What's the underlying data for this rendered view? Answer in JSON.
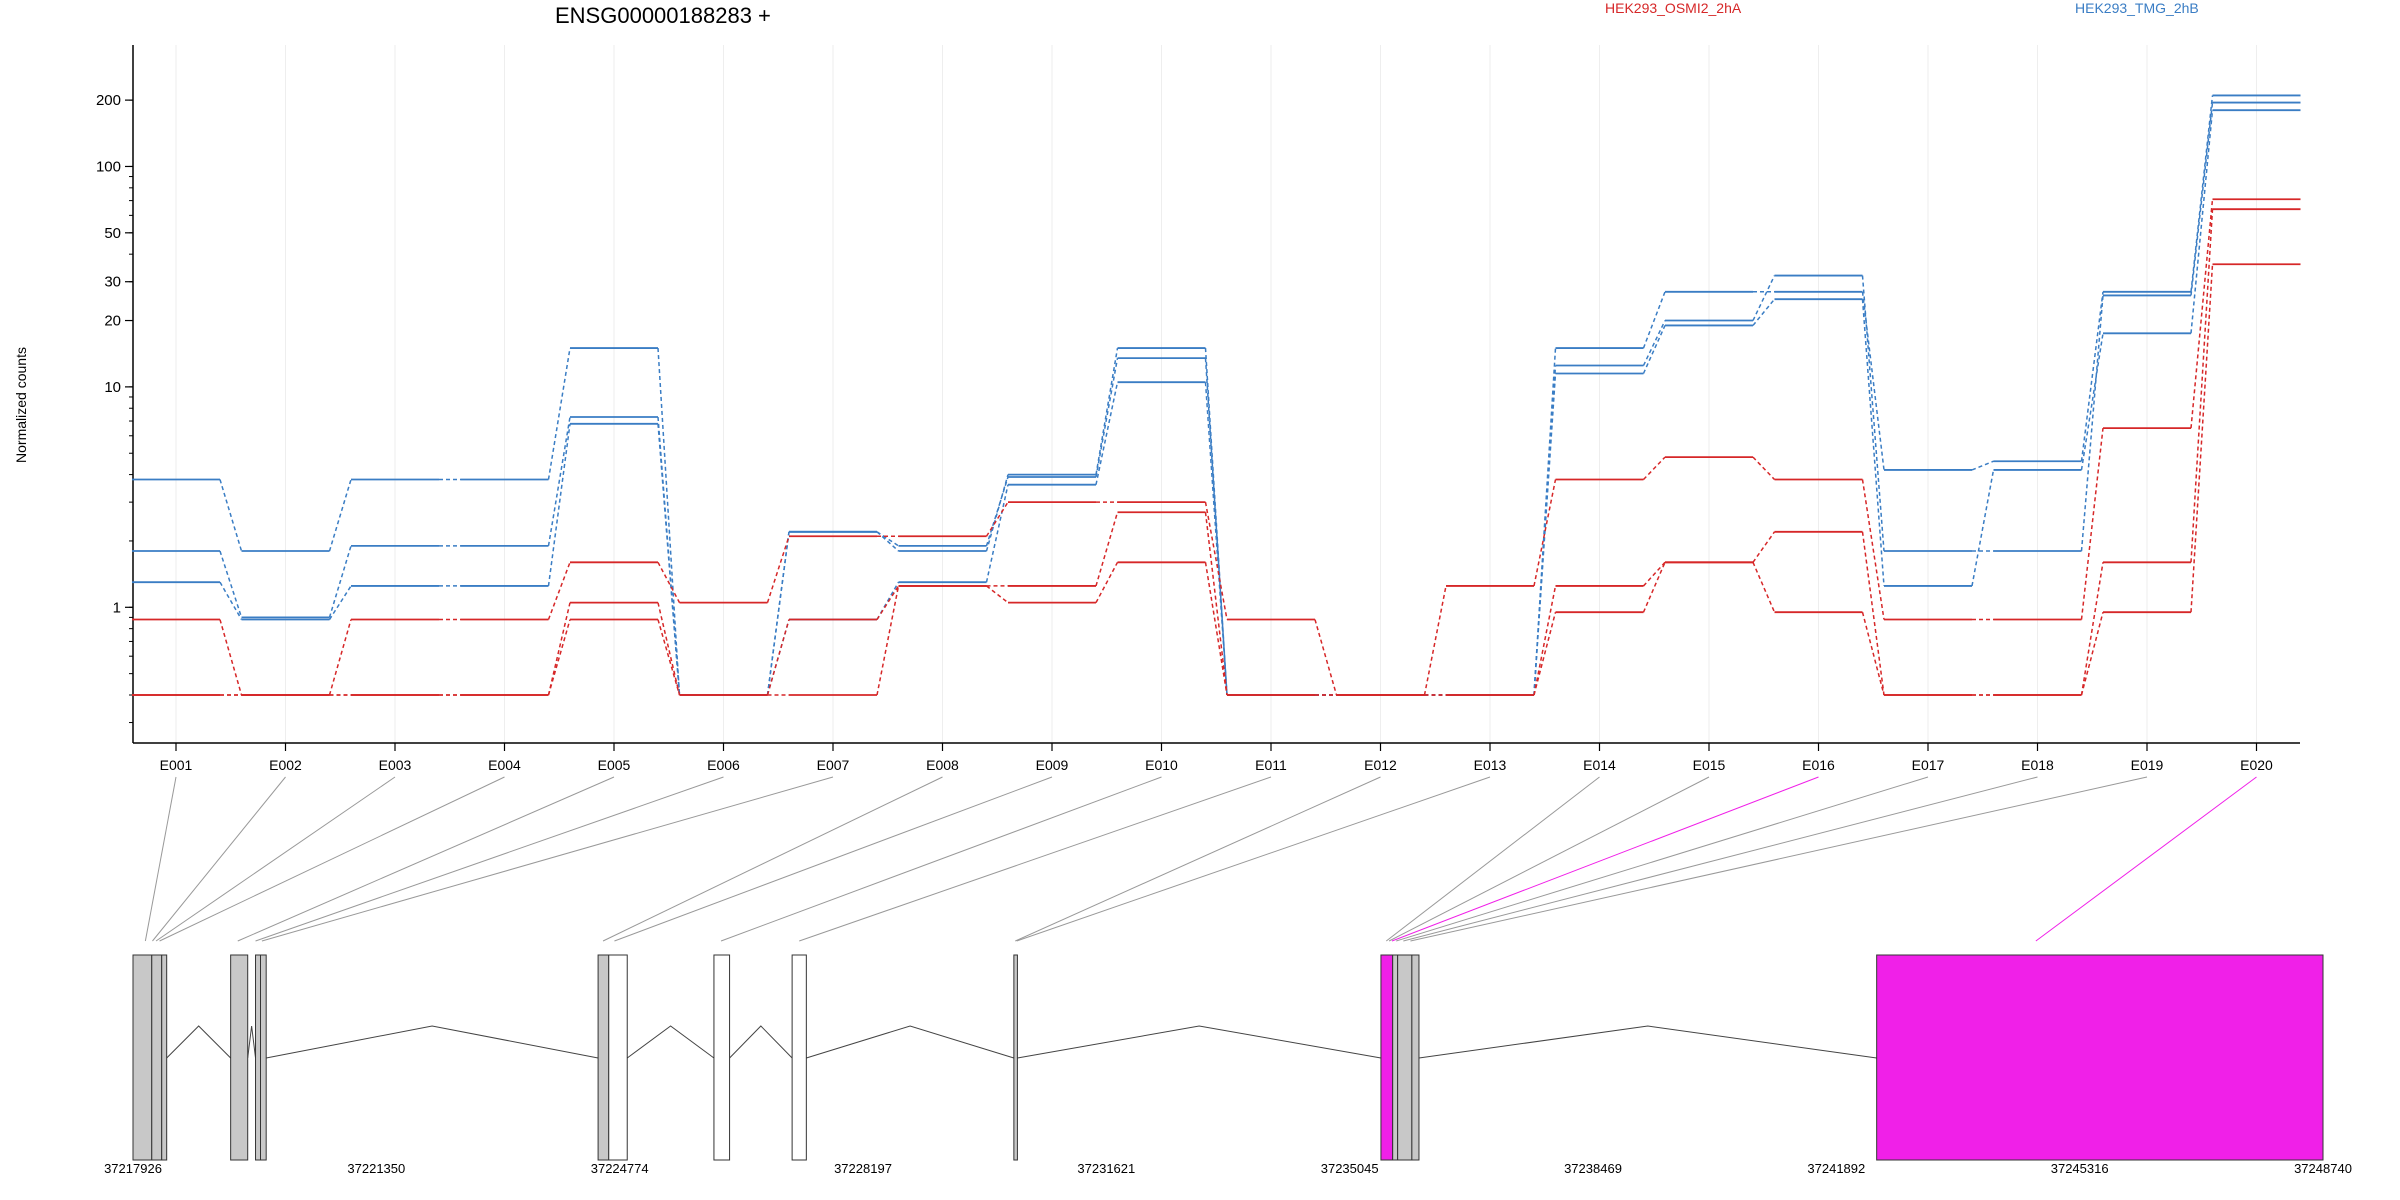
{
  "chart_data": {
    "type": "line",
    "title": "ENSG00000188283 +",
    "ylabel": "Normalized counts",
    "xlabel": "",
    "y_scale": "log",
    "ylim": [
      0.25,
      260
    ],
    "y_ticks": [
      1,
      10,
      20,
      30,
      50,
      100,
      200
    ],
    "grid": "vertical lines at exon boundaries",
    "legend_placement": "top",
    "exons": [
      "E001",
      "E002",
      "E003",
      "E004",
      "E005",
      "E006",
      "E007",
      "E008",
      "E009",
      "E010",
      "E011",
      "E012",
      "E013",
      "E014",
      "E015",
      "E016",
      "E017",
      "E018",
      "E019",
      "E020"
    ],
    "legend": [
      {
        "label": "HEK293_OSMI2_2hA",
        "color": "#d62728"
      },
      {
        "label": "HEK293_TMG_2hB",
        "color": "#3a7dc4"
      }
    ],
    "series": [
      {
        "group": "HEK293_TMG_2hB",
        "color": "#3a7dc4",
        "values": [
          3.8,
          1.8,
          3.8,
          3.8,
          15,
          0.4,
          2.2,
          1.8,
          4,
          15,
          0.4,
          0.4,
          0.4,
          15,
          27,
          27,
          4.2,
          4.6,
          27,
          210
        ]
      },
      {
        "group": "HEK293_TMG_2hB",
        "color": "#3a7dc4",
        "values": [
          1.8,
          0.9,
          1.9,
          1.9,
          7.3,
          0.4,
          2.2,
          1.9,
          3.9,
          13.5,
          0.4,
          0.4,
          0.4,
          12.5,
          20,
          32,
          1.8,
          1.8,
          26,
          195
        ]
      },
      {
        "group": "HEK293_TMG_2hB",
        "color": "#3a7dc4",
        "values": [
          1.3,
          0.88,
          1.25,
          1.25,
          6.8,
          0.4,
          0.88,
          1.3,
          3.6,
          10.5,
          0.4,
          0.4,
          0.4,
          11.5,
          19,
          25,
          1.25,
          4.2,
          17.5,
          180
        ]
      },
      {
        "group": "HEK293_OSMI2_2hA",
        "color": "#d62728",
        "values": [
          0.88,
          0.4,
          0.88,
          0.88,
          1.6,
          1.05,
          2.1,
          2.1,
          3,
          3,
          0.88,
          0.4,
          1.25,
          3.8,
          4.8,
          3.8,
          0.88,
          0.88,
          6.5,
          71
        ]
      },
      {
        "group": "HEK293_OSMI2_2hA",
        "color": "#d62728",
        "values": [
          0.4,
          0.4,
          0.4,
          0.4,
          1.05,
          0.4,
          0.4,
          1.25,
          1.25,
          2.7,
          0.4,
          0.4,
          0.4,
          1.25,
          1.6,
          2.2,
          0.4,
          0.4,
          1.6,
          64
        ]
      },
      {
        "group": "HEK293_OSMI2_2hA",
        "color": "#d62728",
        "values": [
          0.4,
          0.4,
          0.4,
          0.4,
          0.88,
          0.4,
          0.88,
          1.25,
          1.05,
          1.6,
          0.4,
          0.4,
          0.4,
          0.95,
          1.6,
          0.95,
          0.4,
          0.4,
          0.95,
          36
        ]
      }
    ],
    "gene_model": {
      "coordinate_ticks": [
        "37217926",
        "37221350",
        "37224774",
        "37228197",
        "37231621",
        "37235045",
        "37238469",
        "37241892",
        "37245316",
        "37248740"
      ],
      "coord_range": [
        37217926,
        37248740
      ],
      "highlight_color": "#f020e8",
      "exon_blocks": [
        {
          "start": 37217926,
          "end": 37218190,
          "fill": "#c8c8c8"
        },
        {
          "start": 37218190,
          "end": 37218330,
          "fill": "#c8c8c8"
        },
        {
          "start": 37218330,
          "end": 37218400,
          "fill": "#c8c8c8"
        },
        {
          "start": 37219300,
          "end": 37219540,
          "fill": "#c8c8c8"
        },
        {
          "start": 37219650,
          "end": 37219720,
          "fill": "#c8c8c8"
        },
        {
          "start": 37219720,
          "end": 37219800,
          "fill": "#c8c8c8"
        },
        {
          "start": 37224470,
          "end": 37224620,
          "fill": "#c8c8c8"
        },
        {
          "start": 37224620,
          "end": 37224880,
          "fill": "#ffffff"
        },
        {
          "start": 37226100,
          "end": 37226320,
          "fill": "#ffffff"
        },
        {
          "start": 37227200,
          "end": 37227400,
          "fill": "#ffffff"
        },
        {
          "start": 37230320,
          "end": 37230370,
          "fill": "#c8c8c8"
        },
        {
          "start": 37235485,
          "end": 37235650,
          "fill": "#f020e8"
        },
        {
          "start": 37235650,
          "end": 37235720,
          "fill": "#c8c8c8"
        },
        {
          "start": 37235720,
          "end": 37235920,
          "fill": "#c8c8c8"
        },
        {
          "start": 37235920,
          "end": 37236020,
          "fill": "#c8c8c8"
        },
        {
          "start": 37242460,
          "end": 37248740,
          "fill": "#f020e8"
        }
      ],
      "introns": [
        [
          37218400,
          37219300
        ],
        [
          37219540,
          37219650
        ],
        [
          37219800,
          37224470
        ],
        [
          37224880,
          37226100
        ],
        [
          37226320,
          37227200
        ],
        [
          37227400,
          37230320
        ],
        [
          37230370,
          37235485
        ],
        [
          37236020,
          37242460
        ]
      ],
      "exon_links": [
        {
          "exon": "E001",
          "to": 37218100,
          "highlight": false
        },
        {
          "exon": "E002",
          "to": 37218200,
          "highlight": false
        },
        {
          "exon": "E003",
          "to": 37218250,
          "highlight": false
        },
        {
          "exon": "E004",
          "to": 37218300,
          "highlight": false
        },
        {
          "exon": "E005",
          "to": 37219400,
          "highlight": false
        },
        {
          "exon": "E006",
          "to": 37219650,
          "highlight": false
        },
        {
          "exon": "E007",
          "to": 37219740,
          "highlight": false
        },
        {
          "exon": "E008",
          "to": 37224540,
          "highlight": false
        },
        {
          "exon": "E009",
          "to": 37224700,
          "highlight": false
        },
        {
          "exon": "E010",
          "to": 37226200,
          "highlight": false
        },
        {
          "exon": "E011",
          "to": 37227300,
          "highlight": false
        },
        {
          "exon": "E012",
          "to": 37230340,
          "highlight": false
        },
        {
          "exon": "E013",
          "to": 37230360,
          "highlight": false
        },
        {
          "exon": "E014",
          "to": 37235560,
          "highlight": false
        },
        {
          "exon": "E015",
          "to": 37235600,
          "highlight": false
        },
        {
          "exon": "E016",
          "to": 37235640,
          "highlight": true
        },
        {
          "exon": "E017",
          "to": 37235700,
          "highlight": false
        },
        {
          "exon": "E018",
          "to": 37235800,
          "highlight": false
        },
        {
          "exon": "E019",
          "to": 37235900,
          "highlight": false
        },
        {
          "exon": "E020",
          "to": 37244700,
          "highlight": true
        }
      ]
    }
  }
}
